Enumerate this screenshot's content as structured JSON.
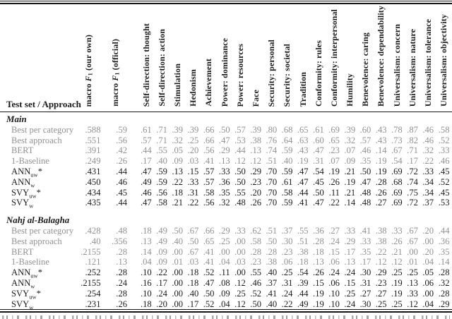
{
  "colors": {
    "text": "#1b1b1b",
    "muted_row_text": "#929292",
    "rule": "#151515"
  },
  "table": {
    "corner_header": "Test set / Approach",
    "columns": [
      {
        "parts": {
          "pre": "macro ",
          "var": "F",
          "sub": "1",
          "post": " (our own)"
        }
      },
      {
        "parts": {
          "pre": "macro ",
          "var": "F",
          "sub": "1",
          "post": " (official)"
        }
      },
      {
        "label": "Self-direction: thought"
      },
      {
        "label": "Self-direction: action"
      },
      {
        "label": "Stimulation"
      },
      {
        "label": "Hedonism"
      },
      {
        "label": "Achievement"
      },
      {
        "label": "Power: dominance"
      },
      {
        "label": "Power: resources"
      },
      {
        "label": "Face"
      },
      {
        "label": "Security: personal"
      },
      {
        "label": "Security: societal"
      },
      {
        "label": "Tradition"
      },
      {
        "label": "Conformity: rules"
      },
      {
        "label": "Conformity: interpersonal"
      },
      {
        "label": "Humility"
      },
      {
        "label": "Benevolence: caring"
      },
      {
        "label": "Benevolence: dependability"
      },
      {
        "label": "Universalism: concern"
      },
      {
        "label": "Universalism: nature"
      },
      {
        "label": "Universalism: tolerance"
      },
      {
        "label": "Universalism: objectivity"
      }
    ],
    "sections": [
      {
        "title": "Main",
        "rows": [
          {
            "label": "Best per category",
            "muted": true,
            "values": [
              ".588",
              ".59",
              ".61",
              ".71",
              ".39",
              ".39",
              ".66",
              ".50",
              ".57",
              ".39",
              ".80",
              ".68",
              ".65",
              ".61",
              ".69",
              ".39",
              ".60",
              ".43",
              ".78",
              ".87",
              ".46",
              ".58"
            ]
          },
          {
            "label": "Best approach",
            "muted": true,
            "values": [
              ".551",
              ".56",
              ".57",
              ".71",
              ".32",
              ".25",
              ".66",
              ".47",
              ".53",
              ".38",
              ".76",
              ".64",
              ".63",
              ".60",
              ".65",
              ".32",
              ".57",
              ".43",
              ".73",
              ".82",
              ".46",
              ".52"
            ]
          },
          {
            "label": "BERT",
            "muted": true,
            "values": [
              ".391",
              ".42",
              ".44",
              ".55",
              ".05",
              ".20",
              ".56",
              ".29",
              ".44",
              ".13",
              ".74",
              ".59",
              ".43",
              ".47",
              ".23",
              ".07",
              ".46",
              ".14",
              ".67",
              ".71",
              ".32",
              ".33"
            ]
          },
          {
            "label": "1-Baseline",
            "muted": true,
            "values": [
              ".249",
              ".26",
              ".17",
              ".40",
              ".09",
              ".03",
              ".41",
              ".13",
              ".12",
              ".12",
              ".51",
              ".40",
              ".19",
              ".31",
              ".07",
              ".09",
              ".35",
              ".19",
              ".54",
              ".17",
              ".22",
              ".46"
            ]
          },
          {
            "label": "ANN",
            "sub": "uw",
            "star": "*",
            "muted": false,
            "values": [
              ".431",
              ".44",
              ".47",
              ".59",
              ".13",
              ".15",
              ".57",
              ".33",
              ".50",
              ".29",
              ".70",
              ".59",
              ".47",
              ".54",
              ".19",
              ".21",
              ".50",
              ".19",
              ".69",
              ".72",
              ".33",
              ".45"
            ]
          },
          {
            "label": "ANN",
            "sub": "w",
            "muted": false,
            "values": [
              ".450",
              ".46",
              ".49",
              ".59",
              ".22",
              ".33",
              ".57",
              ".36",
              ".50",
              ".23",
              ".70",
              ".61",
              ".47",
              ".45",
              ".26",
              ".19",
              ".47",
              ".28",
              ".68",
              ".74",
              ".34",
              ".52"
            ]
          },
          {
            "label": "SVY",
            "sub": "uw",
            "star": "*",
            "muted": false,
            "values": [
              ".434",
              ".45",
              ".46",
              ".56",
              ".18",
              ".31",
              ".58",
              ".35",
              ".55",
              ".20",
              ".70",
              ".58",
              ".44",
              ".50",
              ".11",
              ".21",
              ".48",
              ".26",
              ".69",
              ".75",
              ".34",
              ".45"
            ]
          },
          {
            "label": "SVY",
            "sub": "w",
            "muted": false,
            "values": [
              ".435",
              ".44",
              ".47",
              ".58",
              ".21",
              ".22",
              ".56",
              ".32",
              ".48",
              ".26",
              ".70",
              ".59",
              ".41",
              ".47",
              ".22",
              ".14",
              ".48",
              ".27",
              ".69",
              ".72",
              ".37",
              ".53"
            ]
          }
        ]
      },
      {
        "title": "Nahj al-Balagha",
        "rows": [
          {
            "label": "Best per category",
            "muted": true,
            "values": [
              ".428",
              ".48",
              ".18",
              ".49",
              ".50",
              ".67",
              ".66",
              ".29",
              ".33",
              ".62",
              ".51",
              ".37",
              ".55",
              ".36",
              ".27",
              ".33",
              ".41",
              ".38",
              ".33",
              ".67",
              ".20",
              ".44"
            ]
          },
          {
            "label": "Best approach",
            "muted": true,
            "values": [
              ".40",
              ".356",
              ".13",
              ".49",
              ".40",
              ".50",
              ".65",
              ".25",
              ".00",
              ".58",
              ".50",
              ".30",
              ".51",
              ".28",
              ".24",
              ".29",
              ".33",
              ".38",
              ".26",
              ".67",
              ".00",
              ".36"
            ]
          },
          {
            "label": "BERT",
            "muted": true,
            "values": [
              ".2155",
              ".28",
              ".14",
              ".09",
              ".00",
              ".67",
              ".41",
              ".00",
              ".00",
              ".28",
              ".28",
              ".23",
              ".38",
              ".18",
              ".15",
              ".17",
              ".35",
              ".22",
              ".21",
              ".00",
              ".20",
              ".35"
            ]
          },
          {
            "label": "1-Baseline",
            "muted": true,
            "values": [
              ".121",
              ".13",
              ".04",
              ".09",
              ".01",
              ".03",
              ".41",
              ".04",
              ".03",
              ".23",
              ".38",
              ".06",
              ".18",
              ".13",
              ".06",
              ".13",
              ".17",
              ".12",
              ".12",
              ".01",
              ".04",
              ".14"
            ]
          },
          {
            "label": "ANN",
            "sub": "uw",
            "star": "*",
            "muted": false,
            "values": [
              ".252",
              ".28",
              ".10",
              ".22",
              ".00",
              ".18",
              ".52",
              ".11",
              ".00",
              ".55",
              ".40",
              ".25",
              ".54",
              ".26",
              ".24",
              ".24",
              ".30",
              ".29",
              ".25",
              ".25",
              ".05",
              ".28"
            ]
          },
          {
            "label": "ANN",
            "sub": "w",
            "muted": false,
            "values": [
              ".2155",
              ".24",
              ".16",
              ".17",
              ".00",
              ".18",
              ".47",
              ".08",
              ".12",
              ".46",
              ".37",
              ".31",
              ".39",
              ".15",
              ".06",
              ".15",
              ".31",
              ".23",
              ".19",
              ".13",
              ".06",
              ".32"
            ]
          },
          {
            "label": "SVY",
            "sub": "uw",
            "star": "*",
            "muted": false,
            "values": [
              ".254",
              ".28",
              ".10",
              ".24",
              ".00",
              ".40",
              ".50",
              ".09",
              ".25",
              ".52",
              ".41",
              ".24",
              ".44",
              ".19",
              ".10",
              ".25",
              ".27",
              ".27",
              ".19",
              ".33",
              ".00",
              ".28"
            ]
          },
          {
            "label": "SVY",
            "sub": "w",
            "muted": false,
            "values": [
              ".231",
              ".26",
              ".18",
              ".20",
              ".00",
              ".17",
              ".52",
              ".04",
              ".12",
              ".50",
              ".40",
              ".22",
              ".49",
              ".19",
              ".10",
              ".24",
              ".30",
              ".25",
              ".25",
              ".12",
              ".04",
              ".29"
            ]
          }
        ]
      }
    ]
  }
}
